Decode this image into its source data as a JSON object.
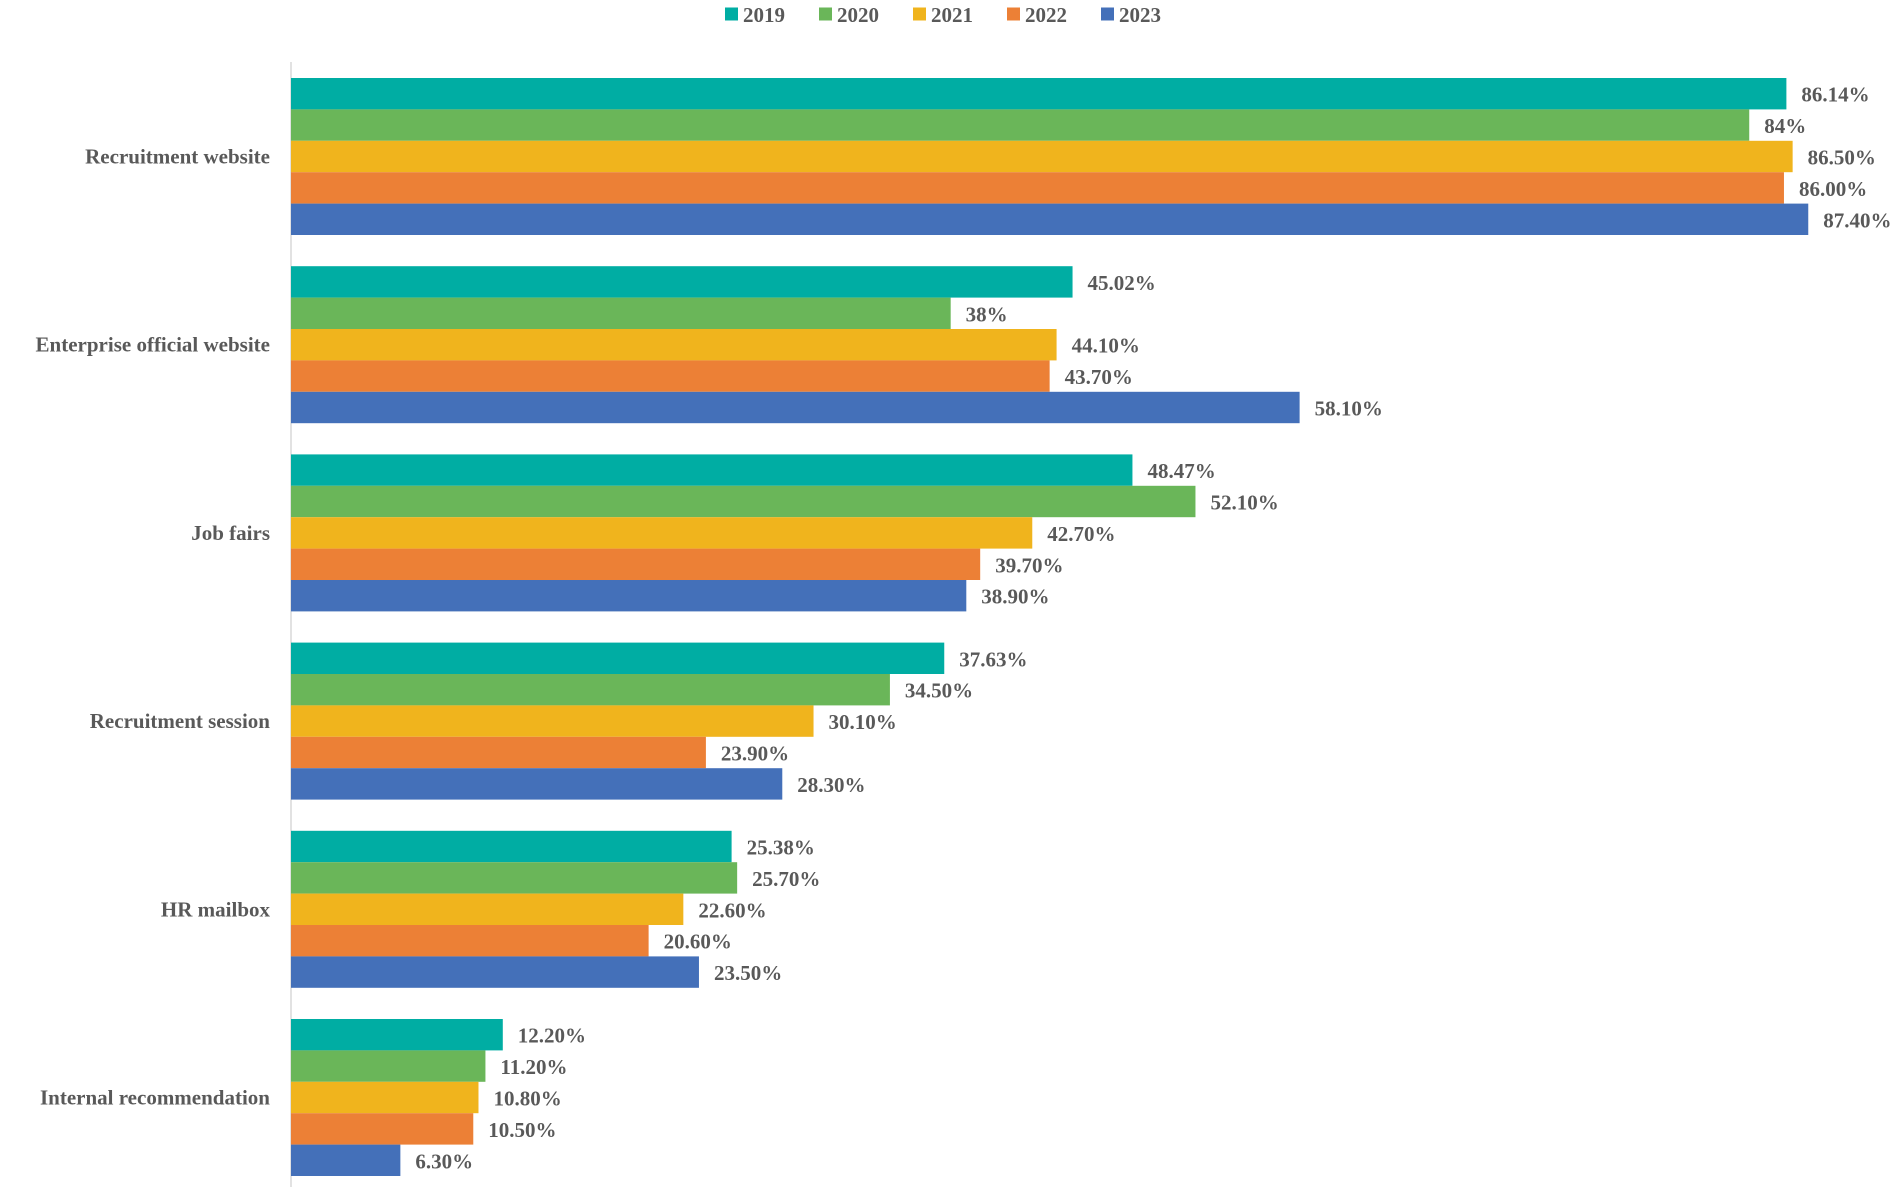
{
  "chart_data": {
    "type": "bar",
    "orientation": "horizontal",
    "title": "",
    "xlabel": "",
    "ylabel": "",
    "xlim": [
      0,
      100
    ],
    "grid": false,
    "legend_position": "top-center",
    "categories": [
      "Recruitment website",
      "Enterprise official website",
      "Job fairs",
      "Recruitment session",
      "HR mailbox",
      "Internal recommendation"
    ],
    "series": [
      {
        "name": "2019",
        "color": "#00ADA3",
        "values": [
          86.14,
          45.02,
          48.47,
          37.63,
          25.38,
          12.2
        ],
        "labels": [
          "86.14%",
          "45.02%",
          "48.47%",
          "37.63%",
          "25.38%",
          "12.20%"
        ]
      },
      {
        "name": "2020",
        "color": "#6AB659",
        "values": [
          84,
          38,
          52.1,
          34.5,
          25.7,
          11.2
        ],
        "labels": [
          "84%",
          "38%",
          "52.10%",
          "34.50%",
          "25.70%",
          "11.20%"
        ]
      },
      {
        "name": "2021",
        "color": "#F0B41D",
        "values": [
          86.5,
          44.1,
          42.7,
          30.1,
          22.6,
          10.8
        ],
        "labels": [
          "86.50%",
          "44.10%",
          "42.70%",
          "30.10%",
          "22.60%",
          "10.80%"
        ]
      },
      {
        "name": "2022",
        "color": "#EC8036",
        "values": [
          86.0,
          43.7,
          39.7,
          23.9,
          20.6,
          10.5
        ],
        "labels": [
          "86.00%",
          "43.70%",
          "39.70%",
          "23.90%",
          "20.60%",
          "10.50%"
        ]
      },
      {
        "name": "2023",
        "color": "#4470B9",
        "values": [
          87.4,
          58.1,
          38.9,
          28.3,
          23.5,
          6.3
        ],
        "labels": [
          "87.40%",
          "58.10%",
          "38.90%",
          "28.30%",
          "23.50%",
          "6.30%"
        ]
      }
    ]
  }
}
